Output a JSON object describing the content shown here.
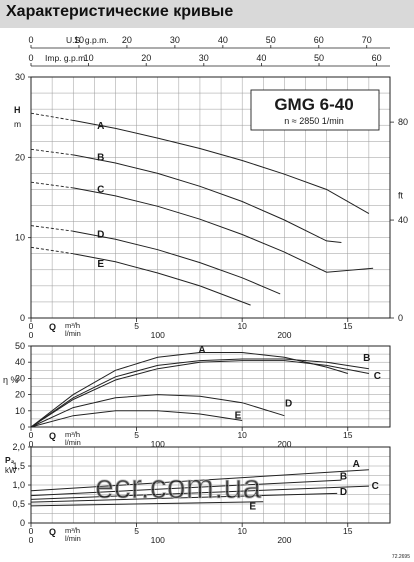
{
  "header": {
    "title": "Характеристические кривые"
  },
  "doc_code": "72.2695",
  "watermark": "ecr.com.ua",
  "chart_data": [
    {
      "type": "line",
      "title": "GMG 6-40",
      "subtitle": "n ≈ 2850 1/min",
      "xlabel": "Q",
      "x_unit_top": "m³/h",
      "x_unit_bottom": "l/min",
      "ylabel": "H",
      "y_unit": "m",
      "ylabel_right": "ft",
      "xlim": [
        0,
        17
      ],
      "ylim": [
        0,
        30
      ],
      "x_ticks": [
        0,
        5,
        10,
        15
      ],
      "x_ticks_lmin": [
        0,
        100,
        200
      ],
      "y_ticks": [
        0,
        10,
        20,
        30
      ],
      "y_ticks_ft": [
        0,
        40,
        80
      ],
      "top_axes": [
        {
          "label": "U.S. g.p.m.",
          "ticks": [
            0,
            10,
            20,
            30,
            40,
            50,
            60,
            70
          ]
        },
        {
          "label": "Imp. g.p.m.",
          "ticks": [
            0,
            10,
            20,
            30,
            40,
            50,
            60
          ]
        }
      ],
      "grid": true,
      "series": [
        {
          "name": "A",
          "x": [
            0,
            2,
            4,
            6,
            8,
            10,
            12,
            14,
            16
          ],
          "y": [
            25.5,
            24.6,
            23.6,
            22.4,
            21.1,
            19.6,
            17.9,
            16.0,
            13.0
          ]
        },
        {
          "name": "B",
          "x": [
            0,
            2,
            4,
            6,
            8,
            10,
            12,
            14,
            14.7
          ],
          "y": [
            21.0,
            20.3,
            19.3,
            18.0,
            16.4,
            14.5,
            12.2,
            9.6,
            9.4
          ]
        },
        {
          "name": "C",
          "x": [
            0,
            2,
            4,
            6,
            8,
            10,
            12,
            14,
            16.2
          ],
          "y": [
            16.9,
            16.2,
            15.2,
            13.9,
            12.3,
            10.4,
            8.2,
            5.7,
            6.2
          ]
        },
        {
          "name": "D",
          "x": [
            0,
            2,
            4,
            6,
            8,
            10,
            11.8
          ],
          "y": [
            11.5,
            10.8,
            9.8,
            8.5,
            6.9,
            5.0,
            3.0
          ]
        },
        {
          "name": "E",
          "x": [
            0,
            2,
            4,
            6,
            8,
            10.4
          ],
          "y": [
            8.8,
            8.0,
            7.0,
            5.6,
            4.0,
            1.6
          ]
        }
      ]
    },
    {
      "type": "line",
      "xlabel": "Q",
      "x_unit_top": "m³/h",
      "x_unit_bottom": "l/min",
      "ylabel": "η %",
      "xlim": [
        0,
        17
      ],
      "ylim": [
        0,
        50
      ],
      "x_ticks": [
        0,
        5,
        10,
        15
      ],
      "x_ticks_lmin": [
        0,
        100,
        200
      ],
      "y_ticks": [
        0,
        10,
        20,
        30,
        40,
        50
      ],
      "grid": true,
      "series": [
        {
          "name": "A",
          "x": [
            0,
            2,
            4,
            6,
            8,
            10,
            12,
            14,
            16
          ],
          "y": [
            0,
            18,
            31,
            38,
            41,
            42,
            42,
            40,
            36
          ]
        },
        {
          "name": "B",
          "x": [
            0,
            2,
            4,
            6,
            8,
            10,
            12,
            14,
            15
          ],
          "y": [
            0,
            20,
            35,
            43,
            46,
            46,
            43,
            37,
            33
          ]
        },
        {
          "name": "C",
          "x": [
            0,
            2,
            4,
            6,
            8,
            10,
            12,
            14,
            16
          ],
          "y": [
            0,
            17,
            29,
            36,
            40,
            41,
            41,
            38,
            33
          ]
        },
        {
          "name": "D",
          "x": [
            0,
            2,
            4,
            6,
            8,
            10,
            12
          ],
          "y": [
            0,
            12,
            18,
            20,
            19,
            15,
            7
          ]
        },
        {
          "name": "E",
          "x": [
            0,
            2,
            4,
            6,
            8,
            10
          ],
          "y": [
            0,
            7,
            10,
            10,
            8,
            4
          ]
        }
      ]
    },
    {
      "type": "line",
      "xlabel": "Q",
      "x_unit_top": "m³/h",
      "x_unit_bottom": "l/min",
      "ylabel": "P₂",
      "y_unit": "kW",
      "xlim": [
        0,
        17
      ],
      "ylim": [
        0,
        2
      ],
      "x_ticks": [
        0,
        5,
        10,
        15
      ],
      "x_ticks_lmin": [
        0,
        100,
        200
      ],
      "y_ticks": [
        0,
        0.5,
        1,
        1.5,
        2
      ],
      "y_tick_labels": [
        "0",
        "0,5",
        "1,0",
        "1,5",
        "2,0"
      ],
      "grid": true,
      "series": [
        {
          "name": "A",
          "x": [
            0,
            16
          ],
          "y": [
            0.85,
            1.4
          ]
        },
        {
          "name": "B",
          "x": [
            0,
            14.7
          ],
          "y": [
            0.72,
            1.13
          ]
        },
        {
          "name": "C",
          "x": [
            0,
            16
          ],
          "y": [
            0.62,
            0.97
          ]
        },
        {
          "name": "D",
          "x": [
            0,
            14.5
          ],
          "y": [
            0.55,
            0.78
          ]
        },
        {
          "name": "E",
          "x": [
            0,
            11
          ],
          "y": [
            0.45,
            0.56
          ]
        }
      ]
    }
  ]
}
